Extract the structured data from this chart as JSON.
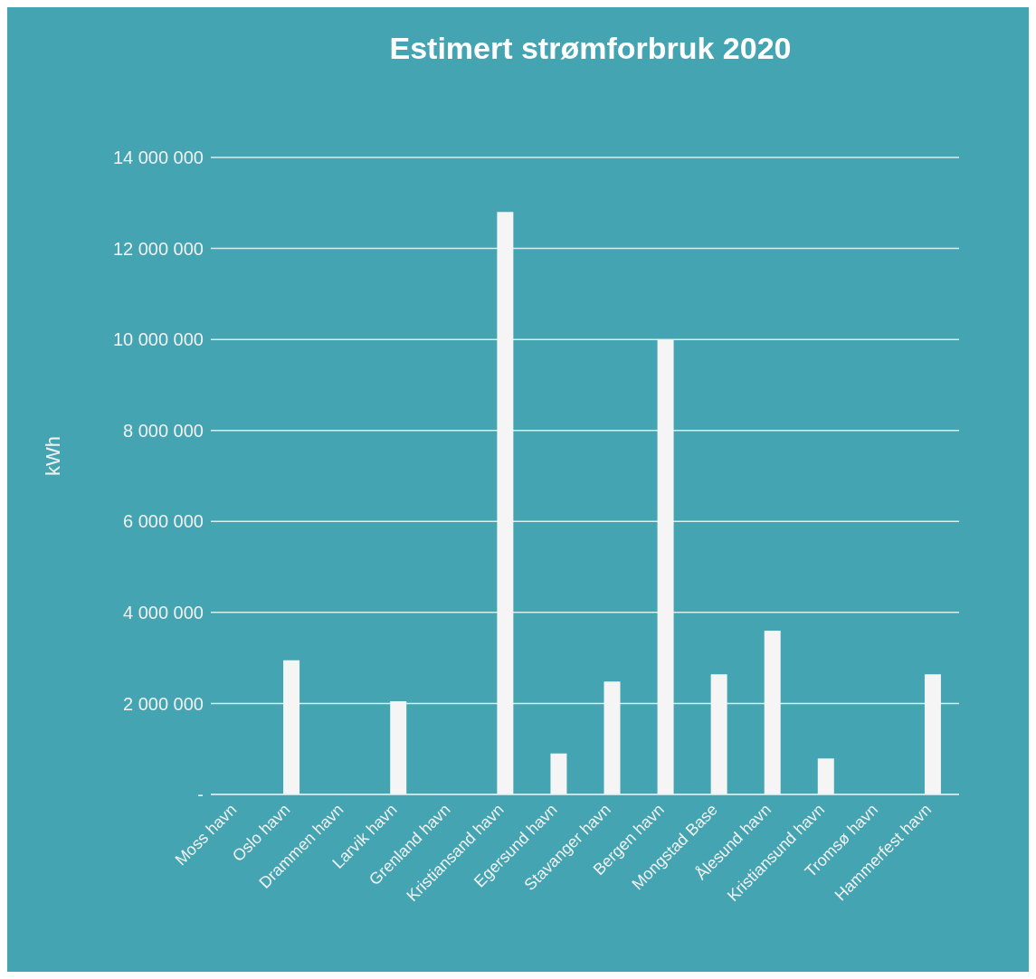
{
  "chart_data": {
    "type": "bar",
    "title": "Estimert strømforbruk 2020",
    "ylabel": "kWh",
    "categories": [
      "Moss havn",
      "Oslo havn",
      "Drammen havn",
      "Larvik havn",
      "Grenland havn",
      "Kristiansand havn",
      "Egersund havn",
      "Stavanger havn",
      "Bergen havn",
      "Mongstad Base",
      "Ålesund havn",
      "Kristiansund havn",
      "Tromsø havn",
      "Hammerfest havn"
    ],
    "values": [
      0,
      2950000,
      0,
      2050000,
      0,
      12800000,
      900000,
      2480000,
      10000000,
      2640000,
      3600000,
      790000,
      0,
      2640000
    ],
    "color": "#f5f5f5",
    "ylim": [
      0,
      14000000
    ],
    "yticks": [
      {
        "value": 0,
        "label": "-"
      },
      {
        "value": 2000000,
        "label": "2 000 000"
      },
      {
        "value": 4000000,
        "label": "4 000 000"
      },
      {
        "value": 6000000,
        "label": "6 000 000"
      },
      {
        "value": 8000000,
        "label": "8 000 000"
      },
      {
        "value": 10000000,
        "label": "10 000 000"
      },
      {
        "value": 12000000,
        "label": "12 000 000"
      },
      {
        "value": 14000000,
        "label": "14 000 000"
      }
    ],
    "grid": "y",
    "legend": false
  }
}
